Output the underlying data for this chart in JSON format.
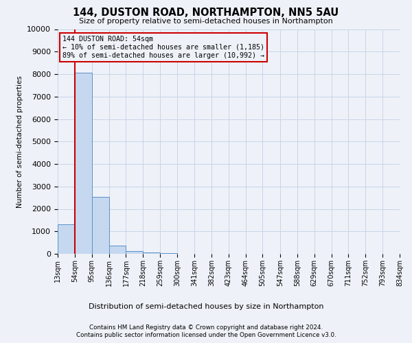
{
  "title": "144, DUSTON ROAD, NORTHAMPTON, NN5 5AU",
  "subtitle": "Size of property relative to semi-detached houses in Northampton",
  "xlabel_bottom": "Distribution of semi-detached houses by size in Northampton",
  "ylabel": "Number of semi-detached properties",
  "footnote1": "Contains HM Land Registry data © Crown copyright and database right 2024.",
  "footnote2": "Contains public sector information licensed under the Open Government Licence v3.0.",
  "property_size": 54,
  "annotation_title": "144 DUSTON ROAD: 54sqm",
  "annotation_line1": "← 10% of semi-detached houses are smaller (1,185)",
  "annotation_line2": "89% of semi-detached houses are larger (10,992) →",
  "bar_color": "#c5d8f0",
  "bar_edge_color": "#5b8fc7",
  "vline_color": "#cc0000",
  "annotation_box_edge": "#cc0000",
  "grid_color": "#c8d4e8",
  "bg_color": "#eef2f8",
  "bin_edges": [
    13,
    54,
    95,
    136,
    177,
    218,
    259,
    300,
    341,
    382,
    423,
    464,
    505,
    547,
    588,
    629,
    670,
    711,
    752,
    793,
    834
  ],
  "bin_labels": [
    "13sqm",
    "54sqm",
    "95sqm",
    "136sqm",
    "177sqm",
    "218sqm",
    "259sqm",
    "300sqm",
    "341sqm",
    "382sqm",
    "423sqm",
    "464sqm",
    "505sqm",
    "547sqm",
    "588sqm",
    "629sqm",
    "670sqm",
    "711sqm",
    "752sqm",
    "793sqm",
    "834sqm"
  ],
  "counts": [
    1320,
    8050,
    2520,
    380,
    130,
    75,
    20,
    0,
    0,
    0,
    0,
    0,
    0,
    0,
    0,
    0,
    0,
    0,
    0,
    0
  ],
  "ylim": [
    0,
    10000
  ],
  "yticks": [
    0,
    1000,
    2000,
    3000,
    4000,
    5000,
    6000,
    7000,
    8000,
    9000,
    10000
  ]
}
